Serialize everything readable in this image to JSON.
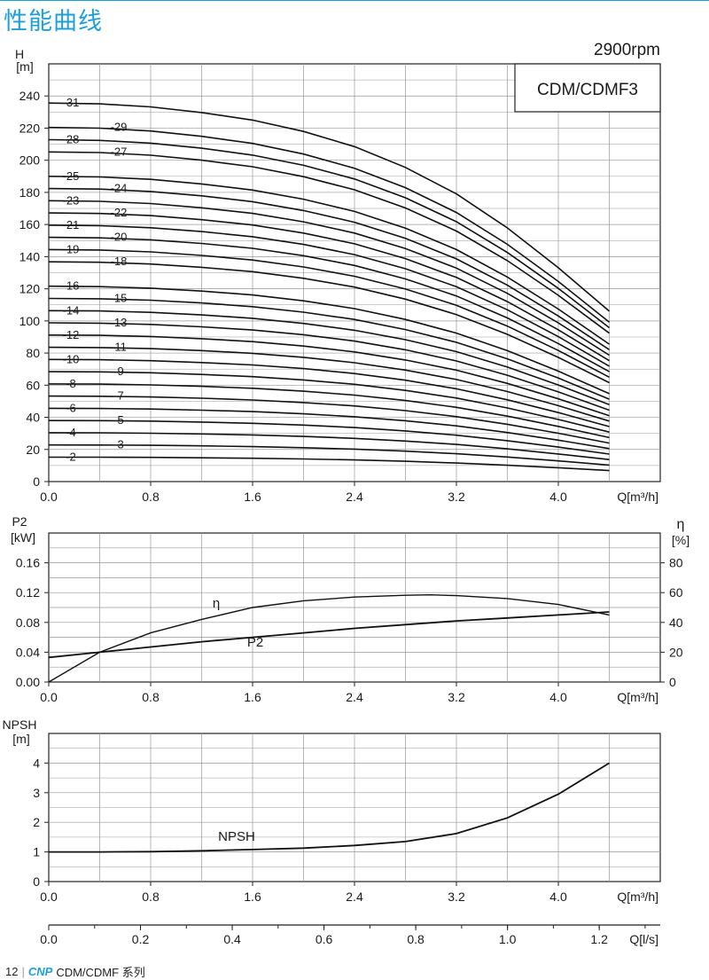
{
  "page": {
    "title": "性能曲线",
    "speed": "2900rpm",
    "model": "CDM/CDMF3"
  },
  "footer": {
    "page_number": "12",
    "brand": "CNP",
    "series": "CDM/CDMF  系列"
  },
  "colors": {
    "title": "#1d9fd8",
    "curve": "#111111",
    "grid": "#999999"
  },
  "chart_data": [
    {
      "type": "line",
      "id": "head",
      "ylabel": "H",
      "yunit": "[m]",
      "xlabel": "Q[m³/h]",
      "xlim": [
        0,
        4.8
      ],
      "ylim": [
        0,
        260
      ],
      "xticks": [
        "0.0",
        "0.8",
        "1.6",
        "2.4",
        "3.2",
        "4.0"
      ],
      "yticks": [
        "0",
        "20",
        "40",
        "60",
        "80",
        "100",
        "120",
        "140",
        "160",
        "180",
        "200",
        "220",
        "240"
      ],
      "grid": true,
      "x": [
        0,
        0.4,
        0.8,
        1.2,
        1.6,
        2.0,
        2.4,
        2.8,
        3.2,
        3.6,
        4.0,
        4.4
      ],
      "stages": [
        2,
        3,
        4,
        5,
        6,
        7,
        8,
        9,
        10,
        11,
        12,
        13,
        14,
        15,
        16,
        18,
        19,
        20,
        21,
        22,
        23,
        24,
        25,
        27,
        28,
        29,
        31
      ],
      "shut_off_head_per_stage": 7.6,
      "end_head_per_stage": 3.4,
      "head_shape": [
        1.0,
        0.998,
        0.99,
        0.975,
        0.955,
        0.925,
        0.885,
        0.83,
        0.76,
        0.67,
        0.565,
        0.45
      ],
      "stage_labels": [
        {
          "text": "-2",
          "side": "left"
        },
        {
          "text": "-3",
          "side": "right"
        },
        {
          "text": "-4",
          "side": "left"
        },
        {
          "text": "-5",
          "side": "right"
        },
        {
          "text": "-6",
          "side": "left"
        },
        {
          "text": "-7",
          "side": "right"
        },
        {
          "text": "-8",
          "side": "left"
        },
        {
          "text": "-9",
          "side": "right"
        },
        {
          "text": "-10",
          "side": "left"
        },
        {
          "text": "-11",
          "side": "right"
        },
        {
          "text": "-12",
          "side": "left"
        },
        {
          "text": "-13",
          "side": "right"
        },
        {
          "text": "-14",
          "side": "left"
        },
        {
          "text": "-15",
          "side": "right"
        },
        {
          "text": "-16",
          "side": "left"
        },
        {
          "text": "-18",
          "side": "right"
        },
        {
          "text": "-19",
          "side": "left"
        },
        {
          "text": "-20",
          "side": "right"
        },
        {
          "text": "-21",
          "side": "left"
        },
        {
          "text": "-22",
          "side": "right"
        },
        {
          "text": "-23",
          "side": "left"
        },
        {
          "text": "-24",
          "side": "right"
        },
        {
          "text": "-25",
          "side": "left"
        },
        {
          "text": "-27",
          "side": "right"
        },
        {
          "text": "-28",
          "side": "left"
        },
        {
          "text": "-29",
          "side": "right"
        },
        {
          "text": "-31",
          "side": "left"
        }
      ]
    },
    {
      "type": "line",
      "id": "power-efficiency",
      "ylabel": "P2",
      "yunit": "[kW]",
      "y2label": "η",
      "y2unit": "[%]",
      "xlabel": "Q[m³/h]",
      "xlim": [
        0,
        4.8
      ],
      "ylim": [
        0,
        0.2
      ],
      "y2lim": [
        0,
        100
      ],
      "xticks": [
        "0.0",
        "0.8",
        "1.6",
        "2.4",
        "3.2",
        "4.0"
      ],
      "yticks": [
        "0.00",
        "0.04",
        "0.08",
        "0.12",
        "0.16"
      ],
      "y2ticks": [
        "0",
        "20",
        "40",
        "60",
        "80"
      ],
      "grid": true,
      "series": [
        {
          "name": "P2",
          "axis": "left",
          "x": [
            0,
            0.4,
            0.8,
            1.2,
            1.6,
            2.0,
            2.4,
            2.8,
            3.2,
            3.6,
            4.0,
            4.4
          ],
          "values": [
            0.033,
            0.04,
            0.047,
            0.054,
            0.06,
            0.066,
            0.072,
            0.077,
            0.082,
            0.086,
            0.09,
            0.094
          ]
        },
        {
          "name": "η",
          "axis": "right",
          "x": [
            0,
            0.4,
            0.8,
            1.2,
            1.6,
            2.0,
            2.4,
            2.8,
            3.0,
            3.2,
            3.6,
            4.0,
            4.4
          ],
          "values": [
            0,
            20,
            33,
            42,
            50,
            54.5,
            57,
            58.2,
            58.5,
            58,
            56,
            52,
            45
          ]
        }
      ]
    },
    {
      "type": "line",
      "id": "npsh",
      "ylabel": "NPSH",
      "yunit": "[m]",
      "xlabel": "Q[m³/h]",
      "x2label": "Q[l/s]",
      "xlim": [
        0,
        4.8
      ],
      "ylim": [
        0,
        5
      ],
      "x2lim": [
        0,
        1.333
      ],
      "xticks": [
        "0.0",
        "0.8",
        "1.6",
        "2.4",
        "3.2",
        "4.0"
      ],
      "yticks": [
        "0",
        "1",
        "2",
        "3",
        "4"
      ],
      "x2ticks": [
        "0.0",
        "0.2",
        "0.4",
        "0.6",
        "0.8",
        "1.0",
        "1.2"
      ],
      "grid": true,
      "series": [
        {
          "name": "NPSH",
          "x": [
            0,
            0.4,
            0.8,
            1.2,
            1.6,
            2.0,
            2.4,
            2.8,
            3.2,
            3.6,
            4.0,
            4.4
          ],
          "values": [
            1.0,
            1.0,
            1.01,
            1.04,
            1.08,
            1.13,
            1.22,
            1.35,
            1.62,
            2.15,
            2.95,
            4.0
          ]
        }
      ]
    }
  ]
}
